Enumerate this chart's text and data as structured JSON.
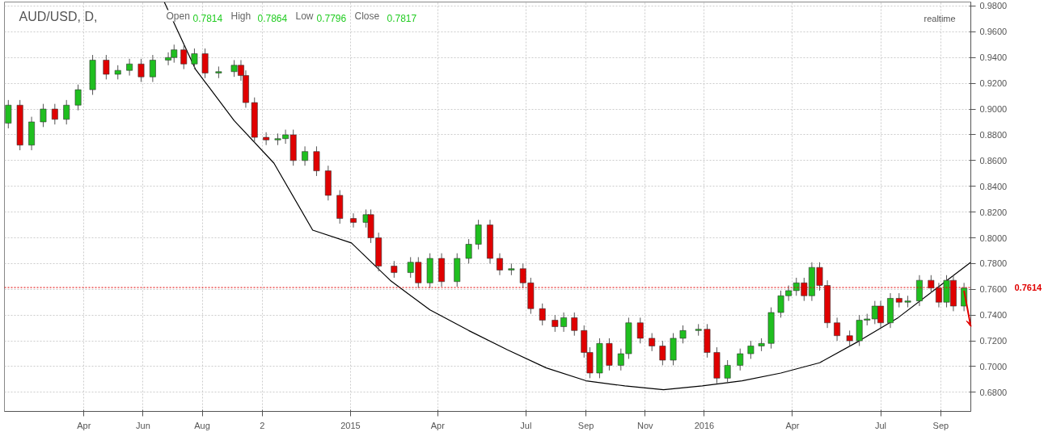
{
  "chart_data": {
    "type": "candlestick",
    "title": "AUD/USD, D,",
    "subtitle": "Open 0.7814 High 0.7864 Low 0.7796 Close 0.7817",
    "annotations": [
      "realtime"
    ],
    "x": [
      "2014-01-13",
      "2014-01-25",
      "2014-02-06",
      "2014-02-18",
      "2014-03-02",
      "2014-03-14",
      "2014-03-26",
      "2014-04-10",
      "2014-04-24",
      "2014-05-06",
      "2014-05-18",
      "2014-05-30",
      "2014-06-11",
      "2014-06-27",
      "2014-07-03",
      "2014-07-13",
      "2014-07-24",
      "2014-08-04",
      "2014-08-18",
      "2014-09-03",
      "2014-09-10",
      "2014-09-15",
      "2014-09-24",
      "2014-10-06",
      "2014-10-18",
      "2014-10-26",
      "2014-11-03",
      "2014-11-15",
      "2014-11-27",
      "2014-12-09",
      "2014-12-21",
      "2015-01-04",
      "2015-01-17",
      "2015-01-22",
      "2015-01-30",
      "2015-02-15",
      "2015-03-04",
      "2015-03-12",
      "2015-03-24",
      "2015-04-05",
      "2015-04-21",
      "2015-05-03",
      "2015-05-13",
      "2015-05-25",
      "2015-06-04",
      "2015-06-16",
      "2015-06-28",
      "2015-07-06",
      "2015-07-18",
      "2015-07-31",
      "2015-08-09",
      "2015-08-20",
      "2015-08-30",
      "2015-09-05",
      "2015-09-15",
      "2015-09-25",
      "2015-10-07",
      "2015-10-15",
      "2015-10-27",
      "2015-11-08",
      "2015-11-19",
      "2015-11-30",
      "2015-12-10",
      "2015-12-26",
      "2016-01-04",
      "2016-01-14",
      "2016-01-25",
      "2016-02-07",
      "2016-02-18",
      "2016-02-29",
      "2016-03-10",
      "2016-03-20",
      "2016-03-28",
      "2016-04-05",
      "2016-04-13",
      "2016-04-21",
      "2016-04-29",
      "2016-05-07",
      "2016-05-17",
      "2016-05-30",
      "2016-06-09",
      "2016-06-17",
      "2016-06-25",
      "2016-07-01",
      "2016-07-11",
      "2016-07-20",
      "2016-07-29",
      "2016-08-10",
      "2016-08-22",
      "2016-08-30",
      "2016-09-07",
      "2016-09-14",
      "2016-09-25"
    ],
    "ohlc": [
      [
        0.889,
        0.907,
        0.885,
        0.903
      ],
      [
        0.903,
        0.907,
        0.868,
        0.872
      ],
      [
        0.872,
        0.894,
        0.868,
        0.89
      ],
      [
        0.89,
        0.904,
        0.886,
        0.9
      ],
      [
        0.9,
        0.904,
        0.888,
        0.892
      ],
      [
        0.892,
        0.907,
        0.888,
        0.903
      ],
      [
        0.903,
        0.919,
        0.899,
        0.915
      ],
      [
        0.915,
        0.942,
        0.911,
        0.938
      ],
      [
        0.938,
        0.942,
        0.923,
        0.927
      ],
      [
        0.927,
        0.934,
        0.923,
        0.93
      ],
      [
        0.93,
        0.939,
        0.926,
        0.935
      ],
      [
        0.935,
        0.939,
        0.921,
        0.925
      ],
      [
        0.925,
        0.942,
        0.921,
        0.938
      ],
      [
        0.938,
        0.944,
        0.934,
        0.94
      ],
      [
        0.94,
        0.95,
        0.936,
        0.946
      ],
      [
        0.946,
        0.95,
        0.931,
        0.935
      ],
      [
        0.935,
        0.947,
        0.931,
        0.943
      ],
      [
        0.943,
        0.947,
        0.924,
        0.928
      ],
      [
        0.928,
        0.933,
        0.924,
        0.929
      ],
      [
        0.929,
        0.938,
        0.925,
        0.934
      ],
      [
        0.934,
        0.938,
        0.922,
        0.926
      ],
      [
        0.926,
        0.93,
        0.901,
        0.905
      ],
      [
        0.905,
        0.909,
        0.874,
        0.878
      ],
      [
        0.878,
        0.882,
        0.872,
        0.876
      ],
      [
        0.876,
        0.881,
        0.872,
        0.877
      ],
      [
        0.877,
        0.884,
        0.873,
        0.88
      ],
      [
        0.88,
        0.884,
        0.856,
        0.86
      ],
      [
        0.86,
        0.871,
        0.856,
        0.867
      ],
      [
        0.867,
        0.871,
        0.848,
        0.852
      ],
      [
        0.852,
        0.856,
        0.829,
        0.833
      ],
      [
        0.833,
        0.837,
        0.811,
        0.815
      ],
      [
        0.815,
        0.819,
        0.808,
        0.812
      ],
      [
        0.812,
        0.822,
        0.808,
        0.818
      ],
      [
        0.818,
        0.822,
        0.796,
        0.8
      ],
      [
        0.8,
        0.804,
        0.774,
        0.778
      ],
      [
        0.778,
        0.782,
        0.769,
        0.773
      ],
      [
        0.773,
        0.785,
        0.769,
        0.781
      ],
      [
        0.781,
        0.785,
        0.761,
        0.765
      ],
      [
        0.765,
        0.788,
        0.761,
        0.784
      ],
      [
        0.784,
        0.788,
        0.762,
        0.766
      ],
      [
        0.766,
        0.788,
        0.762,
        0.784
      ],
      [
        0.784,
        0.799,
        0.78,
        0.795
      ],
      [
        0.795,
        0.814,
        0.791,
        0.81
      ],
      [
        0.81,
        0.814,
        0.78,
        0.784
      ],
      [
        0.784,
        0.788,
        0.771,
        0.775
      ],
      [
        0.775,
        0.78,
        0.771,
        0.776
      ],
      [
        0.776,
        0.78,
        0.761,
        0.765
      ],
      [
        0.765,
        0.769,
        0.741,
        0.745
      ],
      [
        0.745,
        0.749,
        0.732,
        0.736
      ],
      [
        0.736,
        0.74,
        0.727,
        0.731
      ],
      [
        0.731,
        0.742,
        0.727,
        0.738
      ],
      [
        0.738,
        0.742,
        0.724,
        0.728
      ],
      [
        0.728,
        0.732,
        0.707,
        0.711
      ],
      [
        0.711,
        0.715,
        0.691,
        0.695
      ],
      [
        0.695,
        0.722,
        0.691,
        0.718
      ],
      [
        0.718,
        0.722,
        0.697,
        0.701
      ],
      [
        0.701,
        0.714,
        0.697,
        0.71
      ],
      [
        0.71,
        0.738,
        0.706,
        0.734
      ],
      [
        0.734,
        0.738,
        0.718,
        0.722
      ],
      [
        0.722,
        0.726,
        0.712,
        0.716
      ],
      [
        0.716,
        0.72,
        0.701,
        0.705
      ],
      [
        0.705,
        0.726,
        0.701,
        0.722
      ],
      [
        0.722,
        0.732,
        0.718,
        0.728
      ],
      [
        0.728,
        0.733,
        0.724,
        0.729
      ],
      [
        0.729,
        0.733,
        0.707,
        0.711
      ],
      [
        0.711,
        0.715,
        0.687,
        0.691
      ],
      [
        0.691,
        0.705,
        0.687,
        0.701
      ],
      [
        0.701,
        0.714,
        0.697,
        0.71
      ],
      [
        0.71,
        0.72,
        0.706,
        0.716
      ],
      [
        0.716,
        0.722,
        0.712,
        0.718
      ],
      [
        0.718,
        0.746,
        0.714,
        0.742
      ],
      [
        0.742,
        0.759,
        0.738,
        0.755
      ],
      [
        0.755,
        0.763,
        0.751,
        0.759
      ],
      [
        0.759,
        0.769,
        0.755,
        0.765
      ],
      [
        0.765,
        0.769,
        0.751,
        0.755
      ],
      [
        0.755,
        0.781,
        0.751,
        0.777
      ],
      [
        0.777,
        0.781,
        0.759,
        0.763
      ],
      [
        0.763,
        0.767,
        0.73,
        0.734
      ],
      [
        0.734,
        0.738,
        0.72,
        0.724
      ],
      [
        0.724,
        0.728,
        0.716,
        0.72
      ],
      [
        0.72,
        0.74,
        0.716,
        0.736
      ],
      [
        0.736,
        0.741,
        0.732,
        0.737
      ],
      [
        0.737,
        0.751,
        0.733,
        0.747
      ],
      [
        0.747,
        0.751,
        0.73,
        0.734
      ],
      [
        0.734,
        0.757,
        0.73,
        0.753
      ],
      [
        0.753,
        0.757,
        0.746,
        0.75
      ],
      [
        0.75,
        0.755,
        0.746,
        0.751
      ],
      [
        0.751,
        0.771,
        0.747,
        0.767
      ],
      [
        0.767,
        0.771,
        0.757,
        0.761
      ],
      [
        0.761,
        0.765,
        0.746,
        0.75
      ],
      [
        0.75,
        0.771,
        0.746,
        0.767
      ],
      [
        0.767,
        0.771,
        0.743,
        0.747
      ],
      [
        0.747,
        0.765,
        0.743,
        0.761
      ]
    ],
    "colors": [
      "#1fbf1f",
      "#e00000",
      "#1fbf1f",
      "#1fbf1f",
      "#e00000",
      "#1fbf1f",
      "#1fbf1f",
      "#1fbf1f",
      "#e00000",
      "#1fbf1f",
      "#1fbf1f",
      "#e00000",
      "#1fbf1f",
      "#1fbf1f",
      "#1fbf1f",
      "#e00000",
      "#1fbf1f",
      "#e00000",
      "#1fbf1f",
      "#1fbf1f",
      "#e00000",
      "#e00000",
      "#e00000",
      "#e00000",
      "#1fbf1f",
      "#1fbf1f",
      "#e00000",
      "#1fbf1f",
      "#e00000",
      "#e00000",
      "#e00000",
      "#e00000",
      "#1fbf1f",
      "#e00000",
      "#e00000",
      "#e00000",
      "#1fbf1f",
      "#e00000",
      "#1fbf1f",
      "#e00000",
      "#1fbf1f",
      "#1fbf1f",
      "#1fbf1f",
      "#e00000",
      "#e00000",
      "#1fbf1f",
      "#e00000",
      "#e00000",
      "#e00000",
      "#e00000",
      "#1fbf1f",
      "#e00000",
      "#e00000",
      "#e00000",
      "#1fbf1f",
      "#e00000",
      "#1fbf1f",
      "#1fbf1f",
      "#e00000",
      "#e00000",
      "#e00000",
      "#1fbf1f",
      "#1fbf1f",
      "#1fbf1f",
      "#e00000",
      "#e00000",
      "#1fbf1f",
      "#1fbf1f",
      "#1fbf1f",
      "#1fbf1f",
      "#1fbf1f",
      "#1fbf1f",
      "#1fbf1f",
      "#1fbf1f",
      "#e00000",
      "#1fbf1f",
      "#e00000",
      "#e00000",
      "#e00000",
      "#e00000",
      "#1fbf1f",
      "#1fbf1f",
      "#1fbf1f",
      "#e00000",
      "#1fbf1f",
      "#e00000",
      "#1fbf1f",
      "#1fbf1f",
      "#e00000",
      "#e00000",
      "#1fbf1f",
      "#e00000",
      "#1fbf1f"
    ],
    "series": [
      {
        "type": "line",
        "color": "#000000",
        "x": [
          "2014-06-23",
          "2014-07-25",
          "2014-09-03",
          "2014-10-14",
          "2014-11-23",
          "2015-01-02",
          "2015-02-11",
          "2015-03-24",
          "2015-05-03",
          "2015-06-12",
          "2015-07-22",
          "2015-09-01",
          "2015-10-11",
          "2015-11-20",
          "2015-12-30",
          "2016-02-09",
          "2016-03-20",
          "2016-04-29",
          "2016-06-09",
          "2016-07-19",
          "2016-08-28",
          "2016-10-02"
        ],
        "values": [
          0.983,
          0.931,
          0.891,
          0.858,
          0.806,
          0.796,
          0.767,
          0.744,
          0.728,
          0.713,
          0.699,
          0.689,
          0.685,
          0.682,
          0.685,
          0.689,
          0.695,
          0.703,
          0.72,
          0.738,
          0.761,
          0.781
        ]
      }
    ],
    "ref_lines": [
      {
        "axis": "y",
        "value": 0.7614,
        "label": "0.7614",
        "color": "#e00000",
        "line_style": "dotted"
      }
    ],
    "xlim": [
      "2014-01-09",
      "2016-10-02"
    ],
    "ylim": [
      0.6652,
      0.9831
    ],
    "xticks": [
      {
        "value": "2014-04-01",
        "label": "Apr"
      },
      {
        "value": "2014-06-01",
        "label": "Jun"
      },
      {
        "value": "2014-08-01",
        "label": "Aug"
      },
      {
        "value": "2014-10-02",
        "label": "2"
      },
      {
        "value": "2015-01-01",
        "label": "2015"
      },
      {
        "value": "2015-04-01",
        "label": "Apr"
      },
      {
        "value": "2015-07-01",
        "label": "Jul"
      },
      {
        "value": "2015-09-01",
        "label": "Sep"
      },
      {
        "value": "2015-11-01",
        "label": "Nov"
      },
      {
        "value": "2016-01-01",
        "label": "2016"
      },
      {
        "value": "2016-04-01",
        "label": "Apr"
      },
      {
        "value": "2016-07-01",
        "label": "Jul"
      },
      {
        "value": "2016-09-01",
        "label": "Sep"
      }
    ],
    "yticks": [
      {
        "value": 0.68,
        "label": "0.6800"
      },
      {
        "value": 0.7,
        "label": "0.7000"
      },
      {
        "value": 0.72,
        "label": "0.7200"
      },
      {
        "value": 0.74,
        "label": "0.7400"
      },
      {
        "value": 0.76,
        "label": "0.7600"
      },
      {
        "value": 0.78,
        "label": "0.7800"
      },
      {
        "value": 0.8,
        "label": "0.8000"
      },
      {
        "value": 0.82,
        "label": "0.8200"
      },
      {
        "value": 0.84,
        "label": "0.8400"
      },
      {
        "value": 0.86,
        "label": "0.8600"
      },
      {
        "value": 0.88,
        "label": "0.8800"
      },
      {
        "value": 0.9,
        "label": "0.9000"
      },
      {
        "value": 0.92,
        "label": "0.9200"
      },
      {
        "value": 0.94,
        "label": "0.9400"
      },
      {
        "value": 0.96,
        "label": "0.9600"
      },
      {
        "value": 0.98,
        "label": "0.9800"
      }
    ],
    "grid": true
  }
}
